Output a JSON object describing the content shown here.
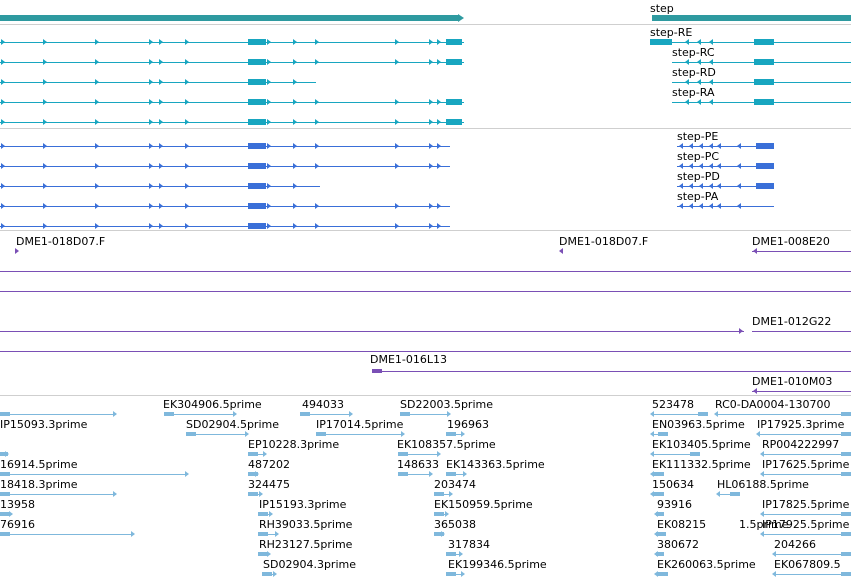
{
  "colors": {
    "gene": "#2e9aa0",
    "mrna": "#18a6c0",
    "protein": "#3a6fd8",
    "bac": "#7a4fb5",
    "est": "#7fb8dc",
    "separator": "#cfcfcf"
  },
  "gene": {
    "label": "step"
  },
  "transcripts": [
    "step-RE",
    "step-RC",
    "step-RD",
    "step-RA"
  ],
  "proteins": [
    "step-PE",
    "step-PC",
    "step-PD",
    "step-PA"
  ],
  "clones": [
    {
      "id": "clone-a",
      "label": "DME1-018D07.F"
    },
    {
      "id": "clone-b",
      "label": "DME1-018D07.F"
    },
    {
      "id": "clone-c",
      "label": "DME1-008E20"
    },
    {
      "id": "clone-d",
      "label": "DME1-012G22"
    },
    {
      "id": "clone-e",
      "label": "DME1-016L13"
    },
    {
      "id": "clone-f",
      "label": "DME1-010M03"
    }
  ],
  "ests": {
    "col1": [
      "IP15093.3prime",
      "16914.5prime",
      "18418.3prime",
      "13958",
      "76916"
    ],
    "col2": [
      "EK304906.5prime",
      "SD02904.5prime",
      "EP10228.3prime",
      "487202",
      "324475",
      "IP15193.3prime",
      "RH39033.5prime",
      "RH23127.5prime",
      "SD02904.3prime"
    ],
    "col3": [
      "494033",
      "IP17014.5prime"
    ],
    "col4": [
      "SD22003.5prime",
      "196963",
      "EK108357.5prime",
      "148633",
      "EK143363.5prime",
      "203474",
      "EK150959.5prime",
      "365038",
      "317834",
      "EK199346.5prime"
    ],
    "col5": [
      "523478",
      "EN03963.5prime",
      "EK103405.5prime",
      "EK111332.5prime",
      "150634",
      "93916",
      "EK08215",
      "380672",
      "EK260063.5prime"
    ],
    "col6": [
      "RC0-DA0004-130700",
      "IP17925.3prime",
      "RP004222997",
      "IP17625.5prime",
      "HL06188.5prime",
      "IP17825.5prime",
      "1.5prime",
      "IP17925.5prime",
      "204266",
      "EK067809.5"
    ]
  }
}
